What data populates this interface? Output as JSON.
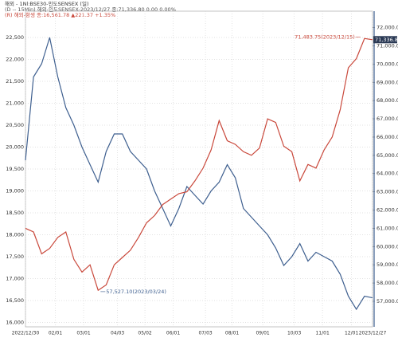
{
  "chart_data": {
    "type": "line",
    "title": "해외 - 1Nl:BSE30-인도SENSEX (일)",
    "subtitle": [
      "(D -- 15Min) 해외-인도SENSEX-2023/12/27 종:71,336.80  0.00  0.00%",
      "(R) 해외-항셍 종:16,561.78 ▲221.37 +1.35%"
    ],
    "xlim": [
      0,
      43
    ],
    "xticks": [
      {
        "value": 0,
        "label": "2022/12/30"
      },
      {
        "value": 3.7,
        "label": "02/01"
      },
      {
        "value": 7.2,
        "label": "03/01"
      },
      {
        "value": 11.4,
        "label": "04/03"
      },
      {
        "value": 14.8,
        "label": "05/02"
      },
      {
        "value": 18.3,
        "label": "06/01"
      },
      {
        "value": 22.3,
        "label": "07/03"
      },
      {
        "value": 25.6,
        "label": "08/01"
      },
      {
        "value": 29.4,
        "label": "09/01"
      },
      {
        "value": 33.3,
        "label": "10/03"
      },
      {
        "value": 36.8,
        "label": "11/01"
      },
      {
        "value": 40.4,
        "label": "12/01"
      },
      {
        "value": 43,
        "label": "2023/12/27"
      }
    ],
    "ylim": [
      15900,
      23100
    ],
    "yticks": [
      {
        "value": 16000,
        "label": "16,000"
      },
      {
        "value": 16500,
        "label": "16,500"
      },
      {
        "value": 17000,
        "label": "17,000"
      },
      {
        "value": 17500,
        "label": "17,500"
      },
      {
        "value": 18000,
        "label": "18,000"
      },
      {
        "value": 18500,
        "label": "18,500"
      },
      {
        "value": 19000,
        "label": "19,000"
      },
      {
        "value": 19500,
        "label": "19,500"
      },
      {
        "value": 20000,
        "label": "20,000"
      },
      {
        "value": 20500,
        "label": "20,500"
      },
      {
        "value": 21000,
        "label": "21,000"
      },
      {
        "value": 21500,
        "label": "21,500"
      },
      {
        "value": 22000,
        "label": "22,000"
      },
      {
        "value": 22500,
        "label": "22,500"
      }
    ],
    "y2lim": [
      55600,
      72900
    ],
    "y2ticks": [
      {
        "value": 57000,
        "label": "57,000.00"
      },
      {
        "value": 58000,
        "label": "58,000.00"
      },
      {
        "value": 59000,
        "label": "59,000.00"
      },
      {
        "value": 60000,
        "label": "60,000.00"
      },
      {
        "value": 61000,
        "label": "61,000.00"
      },
      {
        "value": 62000,
        "label": "62,000.00"
      },
      {
        "value": 63000,
        "label": "63,000.00"
      },
      {
        "value": 64000,
        "label": "64,000.00"
      },
      {
        "value": 65000,
        "label": "65,000.00"
      },
      {
        "value": 66000,
        "label": "66,000.00"
      },
      {
        "value": 67000,
        "label": "67,000.00"
      },
      {
        "value": 68000,
        "label": "68,000.00"
      },
      {
        "value": 69000,
        "label": "69,000.00"
      },
      {
        "value": 70000,
        "label": "70,000.00"
      },
      {
        "value": 71000,
        "label": "71,000.00"
      },
      {
        "value": 72000,
        "label": "72,000.00"
      }
    ],
    "grid": true,
    "series": [
      {
        "name": "해외-항셍",
        "color": "#3e5f8f",
        "axis": "y",
        "values": [
          19700,
          21600,
          21900,
          22500,
          21600,
          20900,
          20500,
          20000,
          19600,
          19200,
          19900,
          20300,
          20300,
          19900,
          19700,
          19500,
          19000,
          18600,
          18200,
          18600,
          19100,
          18900,
          18700,
          19000,
          19200,
          19600,
          19300,
          18600,
          18400,
          18200,
          18000,
          17700,
          17300,
          17500,
          17800,
          17400,
          17600,
          17500,
          17400,
          17100,
          16600,
          16300,
          16600,
          16561.78
        ]
      },
      {
        "name": "해외-인도SENSEX",
        "color": "#c9483b",
        "axis": "y2",
        "values": [
          61000,
          60800,
          59600,
          59900,
          60500,
          60800,
          59300,
          58600,
          59000,
          57600,
          57900,
          59000,
          59400,
          59800,
          60500,
          61300,
          61700,
          62300,
          62600,
          62900,
          63000,
          63600,
          64300,
          65300,
          66900,
          65800,
          65600,
          65200,
          65000,
          65400,
          67000,
          66800,
          65500,
          65200,
          63600,
          64500,
          64300,
          65300,
          66000,
          67500,
          69800,
          70300,
          71400,
          71336.8
        ]
      }
    ],
    "annotations": [
      {
        "text": "71,483.75(2023/12/15)",
        "x": 41.5,
        "value": 71483.75
      },
      {
        "text": "57,527.10(2023/03/24)",
        "x": 9.3,
        "value": 57527.1
      },
      {
        "text": "71,336.80",
        "x": 43,
        "value": 71336.8
      }
    ]
  }
}
